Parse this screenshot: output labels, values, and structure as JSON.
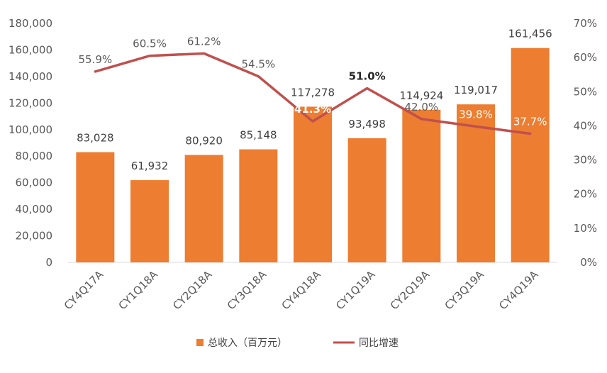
{
  "chart_data": {
    "type": "bar",
    "categories": [
      "CY4Q17A",
      "CY1Q18A",
      "CY2Q18A",
      "CY3Q18A",
      "CY4Q18A",
      "CY1Q19A",
      "CY2Q19A",
      "CY3Q19A",
      "CY4Q19A"
    ],
    "series": [
      {
        "name": "总收入（百万元）",
        "type": "bar",
        "axis": "left",
        "color": "#ED7D31",
        "values": [
          83028,
          61932,
          80920,
          85148,
          117278,
          93498,
          114924,
          119017,
          161456
        ],
        "labels": [
          "83,028",
          "61,932",
          "80,920",
          "85,148",
          "117,278",
          "93,498",
          "114,924",
          "119,017",
          "161,456"
        ]
      },
      {
        "name": "同比增速",
        "type": "line",
        "axis": "right",
        "color": "#C0504D",
        "values": [
          55.9,
          60.5,
          61.2,
          54.5,
          41.3,
          51.0,
          42.0,
          39.8,
          37.7
        ],
        "labels": [
          "55.9%",
          "60.5%",
          "61.2%",
          "54.5%",
          "41.3%",
          "51.0%",
          "42.0%",
          "39.8%",
          "37.7%"
        ]
      }
    ],
    "y_left": {
      "min": 0,
      "max": 180000,
      "ticks": [
        0,
        20000,
        40000,
        60000,
        80000,
        100000,
        120000,
        140000,
        160000,
        180000
      ],
      "tick_labels": [
        "0",
        "20,000",
        "40,000",
        "60,000",
        "80,000",
        "100,000",
        "120,000",
        "140,000",
        "160,000",
        "180,000"
      ]
    },
    "y_right": {
      "min": 0,
      "max": 70,
      "ticks": [
        0,
        10,
        20,
        30,
        40,
        50,
        60,
        70
      ],
      "tick_labels": [
        "0%",
        "10%",
        "20%",
        "30%",
        "40%",
        "50%",
        "60%",
        "70%"
      ]
    },
    "grid": false,
    "legend_position": "bottom",
    "title": "",
    "xlabel": "",
    "ylabel": ""
  }
}
